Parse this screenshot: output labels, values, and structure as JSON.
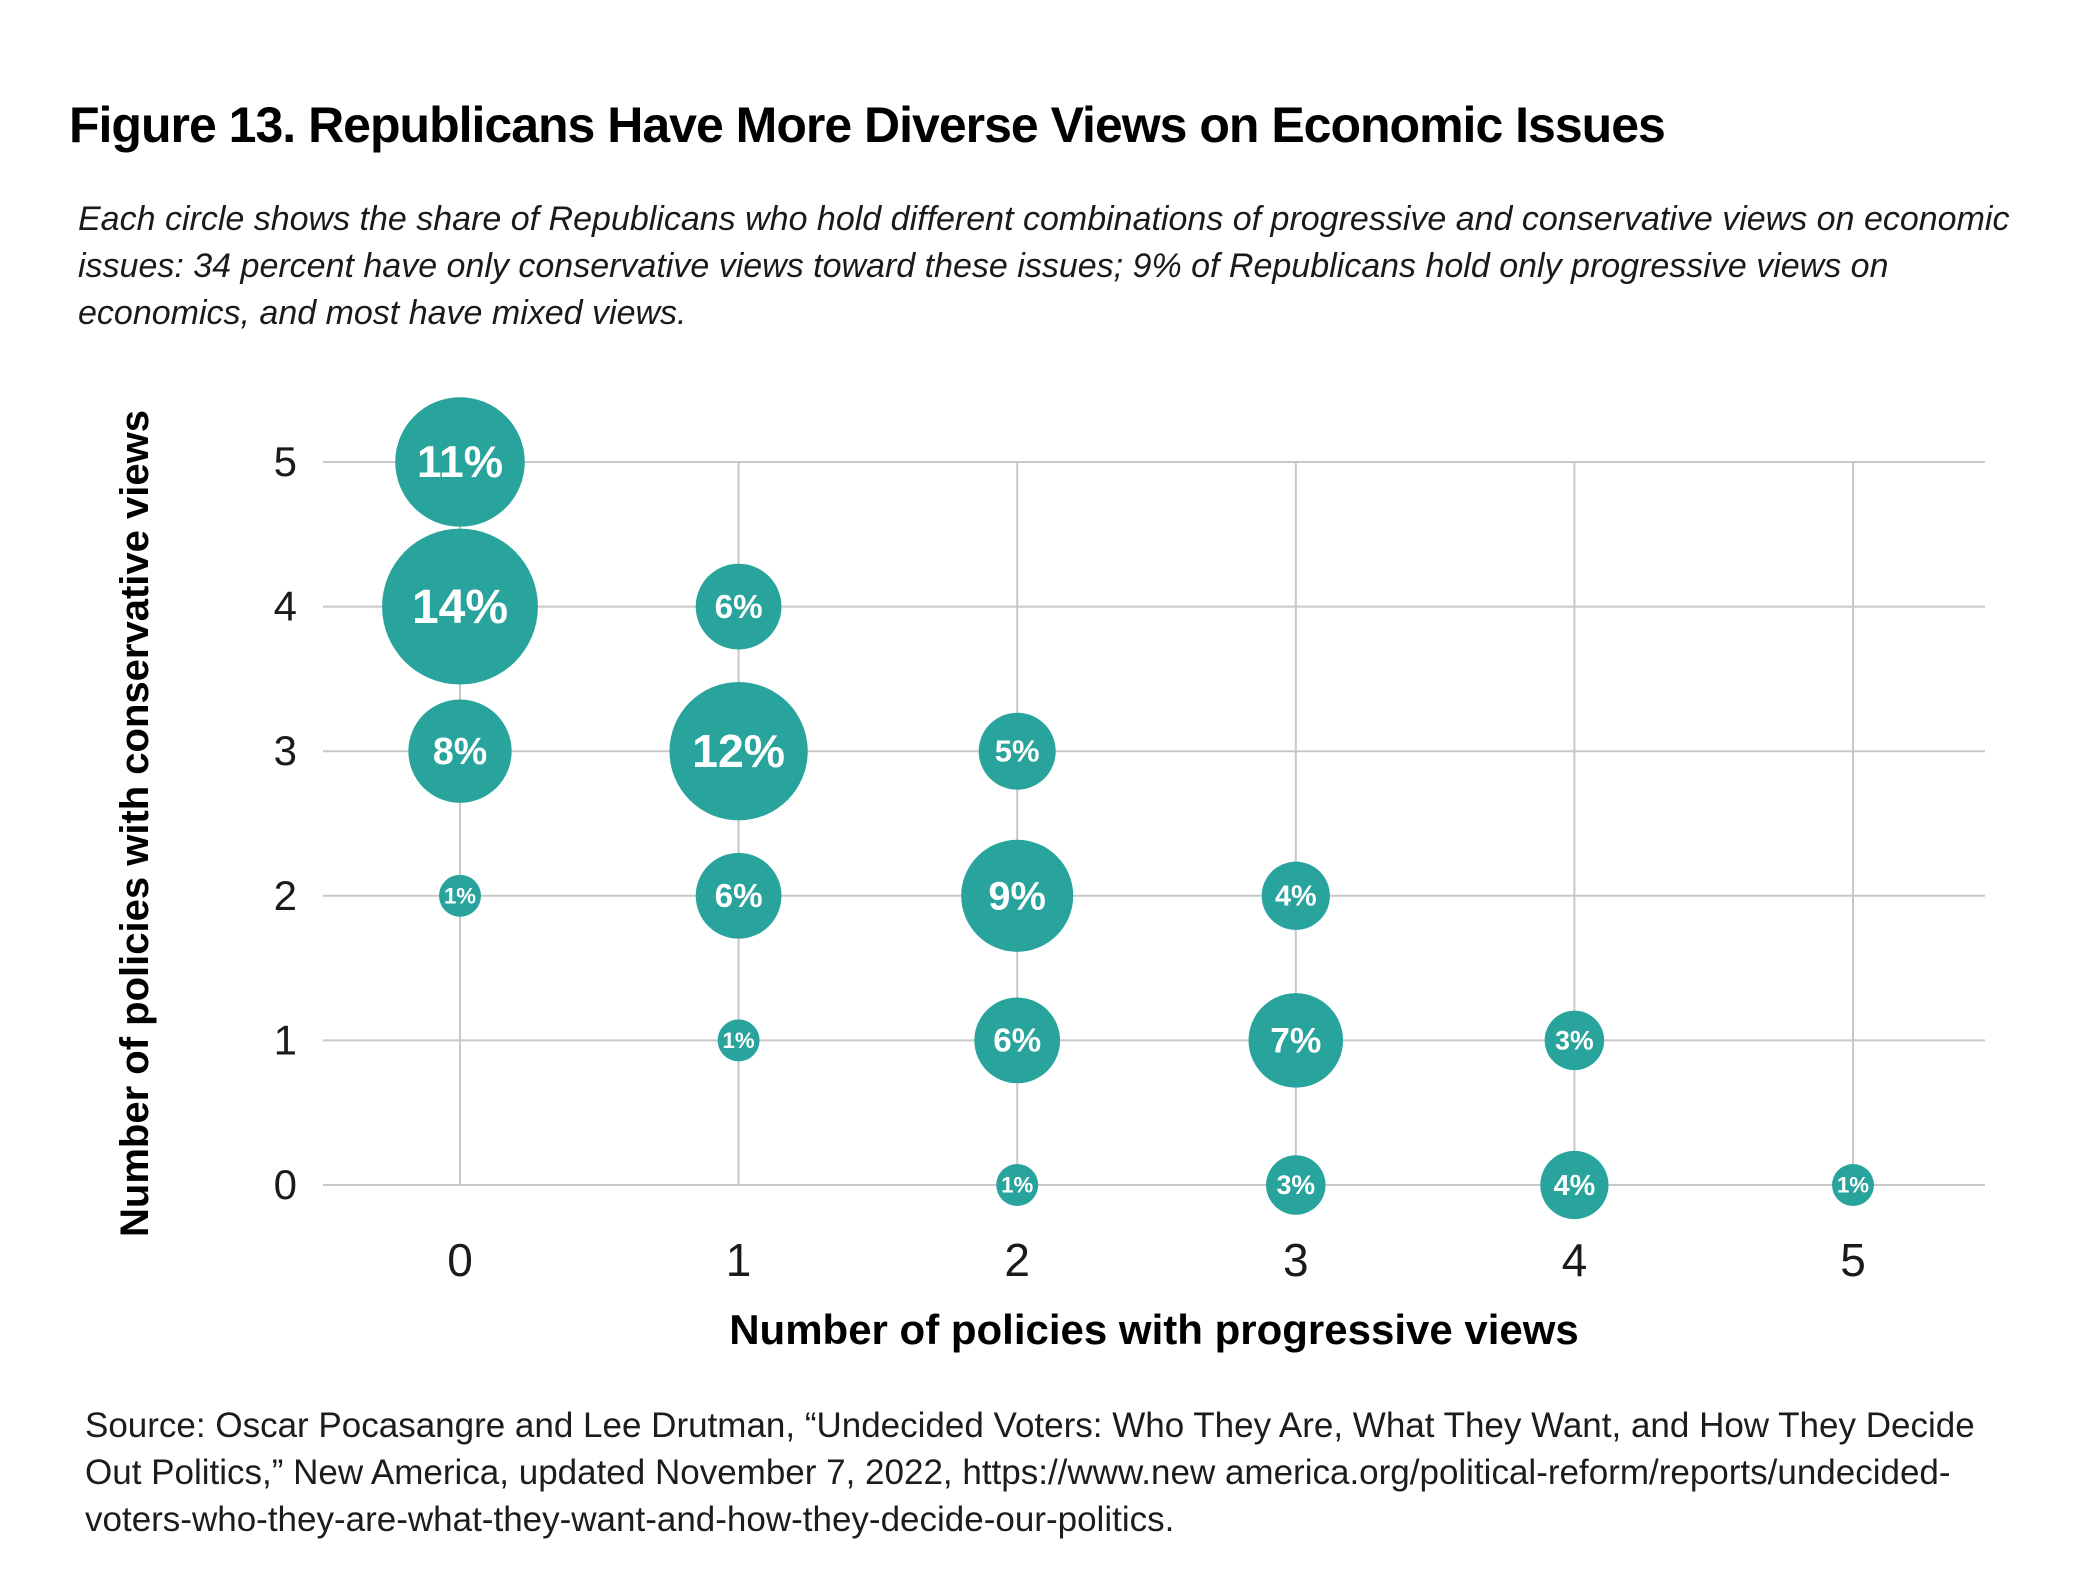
{
  "figure": {
    "title": "Figure 13. Republicans Have More Diverse Views on Economic Issues",
    "subtitle_lines": [
      "Each circle shows the share of Republicans who hold different combinations of progressive and conservative views on economic",
      "issues: 34 percent have only conservative views toward these issues; 9% of Republicans hold only progressive views on",
      "economics, and most have mixed views."
    ],
    "source_lines": [
      "Source: Oscar Pocasangre and Lee Drutman, “Undecided Voters: Who They Are, What They Want, and How They Decide",
      "Out Politics,” New America, updated November 7, 2022, https://www.new america.org/political-reform/reports/undecided-",
      "voters-who-they-are-what-they-want-and-how-they-decide-our-politics."
    ]
  },
  "chart_data": {
    "type": "scatter",
    "subtype": "bubble",
    "title": "Figure 13. Republicans Have More Diverse Views on Economic Issues",
    "xlabel": "Number of policies with progressive views",
    "ylabel": "Number of policies with conservative views",
    "x_ticks": [
      "0",
      "1",
      "2",
      "3",
      "4",
      "5"
    ],
    "y_ticks": [
      "0",
      "1",
      "2",
      "3",
      "4",
      "5"
    ],
    "xlim": [
      -0.5,
      5.5
    ],
    "ylim": [
      -0.5,
      5.5
    ],
    "grid": "on",
    "legend": "none",
    "value_unit": "percent of Republicans",
    "points": [
      {
        "x": 0,
        "y": 5,
        "value": 11,
        "label": "11%"
      },
      {
        "x": 0,
        "y": 4,
        "value": 14,
        "label": "14%"
      },
      {
        "x": 0,
        "y": 3,
        "value": 8,
        "label": "8%"
      },
      {
        "x": 0,
        "y": 2,
        "value": 1,
        "label": "1%"
      },
      {
        "x": 1,
        "y": 4,
        "value": 6,
        "label": "6%"
      },
      {
        "x": 1,
        "y": 3,
        "value": 12,
        "label": "12%"
      },
      {
        "x": 1,
        "y": 2,
        "value": 6,
        "label": "6%"
      },
      {
        "x": 1,
        "y": 1,
        "value": 1,
        "label": "1%"
      },
      {
        "x": 2,
        "y": 3,
        "value": 5,
        "label": "5%"
      },
      {
        "x": 2,
        "y": 2,
        "value": 9,
        "label": "9%"
      },
      {
        "x": 2,
        "y": 1,
        "value": 6,
        "label": "6%"
      },
      {
        "x": 2,
        "y": 0,
        "value": 1,
        "label": "1%"
      },
      {
        "x": 3,
        "y": 2,
        "value": 4,
        "label": "4%"
      },
      {
        "x": 3,
        "y": 1,
        "value": 7,
        "label": "7%"
      },
      {
        "x": 3,
        "y": 0,
        "value": 3,
        "label": "3%"
      },
      {
        "x": 4,
        "y": 1,
        "value": 3,
        "label": "3%"
      },
      {
        "x": 4,
        "y": 0,
        "value": 4,
        "label": "4%"
      },
      {
        "x": 5,
        "y": 0,
        "value": 1,
        "label": "1%"
      }
    ],
    "colors": {
      "bubble": "#28a49c",
      "bubble_label": "#ffffff",
      "grid": "#c8c8c8",
      "tick_label": "#1a1a1a",
      "axis_title": "#000000"
    }
  }
}
